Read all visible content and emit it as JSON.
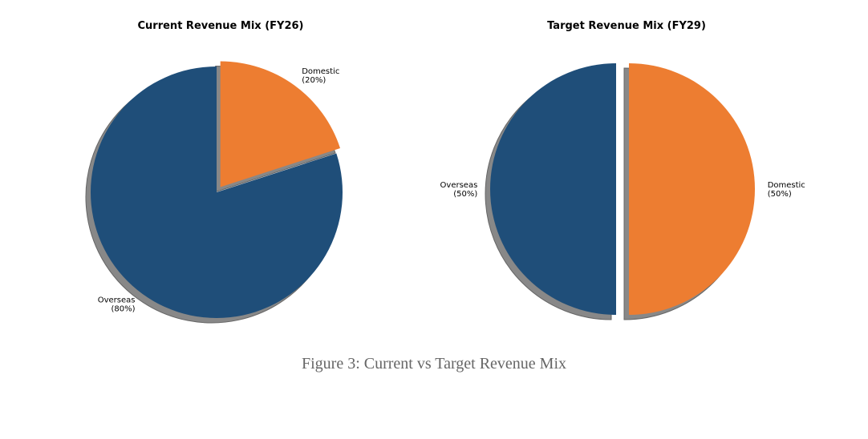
{
  "chart_data": [
    {
      "type": "pie",
      "title": "Current Revenue Mix (FY26)",
      "labels": [
        "Domestic",
        "Overseas"
      ],
      "values": [
        20,
        80
      ],
      "pct_labels": [
        "(20%)",
        "(80%)"
      ],
      "colors": [
        "#ed7d31",
        "#1f4e79"
      ],
      "explode": [
        true,
        false
      ],
      "start_angle": 90,
      "direction": "clockwise",
      "shadow": true
    },
    {
      "type": "pie",
      "title": "Target Revenue Mix (FY29)",
      "labels": [
        "Domestic",
        "Overseas"
      ],
      "values": [
        50,
        50
      ],
      "pct_labels": [
        "(50%)",
        "(50%)"
      ],
      "colors": [
        "#ed7d31",
        "#1f4e79"
      ],
      "explode": [
        true,
        true
      ],
      "start_angle": 90,
      "direction": "clockwise",
      "shadow": true
    }
  ],
  "caption": "Figure 3: Current vs Target Revenue Mix"
}
